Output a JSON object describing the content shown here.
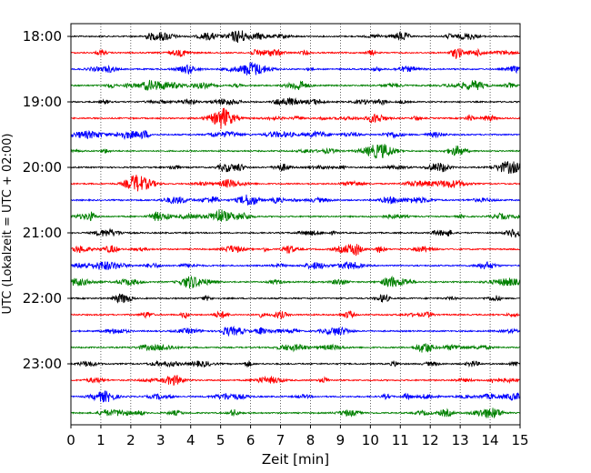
{
  "chart_data": {
    "type": "line",
    "title": "",
    "xlabel": "Zeit  [min]",
    "ylabel": "UTC (Lokalzeit = UTC + 02:00)",
    "xlim": [
      0,
      15
    ],
    "x_ticks": [
      "0",
      "1",
      "2",
      "3",
      "4",
      "5",
      "6",
      "7",
      "8",
      "9",
      "10",
      "11",
      "12",
      "13",
      "14",
      "15"
    ],
    "y_tick_labels": [
      "18:00",
      "19:00",
      "20:00",
      "21:00",
      "22:00",
      "23:00"
    ],
    "grid": "vertical dotted",
    "trace_colors": [
      "#000000",
      "#ff0000",
      "#0000ff",
      "#008000"
    ],
    "traces": [
      {
        "start": "18:00"
      },
      {
        "start": "18:15"
      },
      {
        "start": "18:30"
      },
      {
        "start": "18:45"
      },
      {
        "start": "19:00"
      },
      {
        "start": "19:15"
      },
      {
        "start": "19:30"
      },
      {
        "start": "19:45"
      },
      {
        "start": "20:00"
      },
      {
        "start": "20:15"
      },
      {
        "start": "20:30"
      },
      {
        "start": "20:45"
      },
      {
        "start": "21:00"
      },
      {
        "start": "21:15"
      },
      {
        "start": "21:30"
      },
      {
        "start": "21:45"
      },
      {
        "start": "22:00"
      },
      {
        "start": "22:15"
      },
      {
        "start": "22:30"
      },
      {
        "start": "22:45"
      },
      {
        "start": "23:00"
      },
      {
        "start": "23:15"
      },
      {
        "start": "23:30"
      },
      {
        "start": "23:45"
      }
    ]
  }
}
